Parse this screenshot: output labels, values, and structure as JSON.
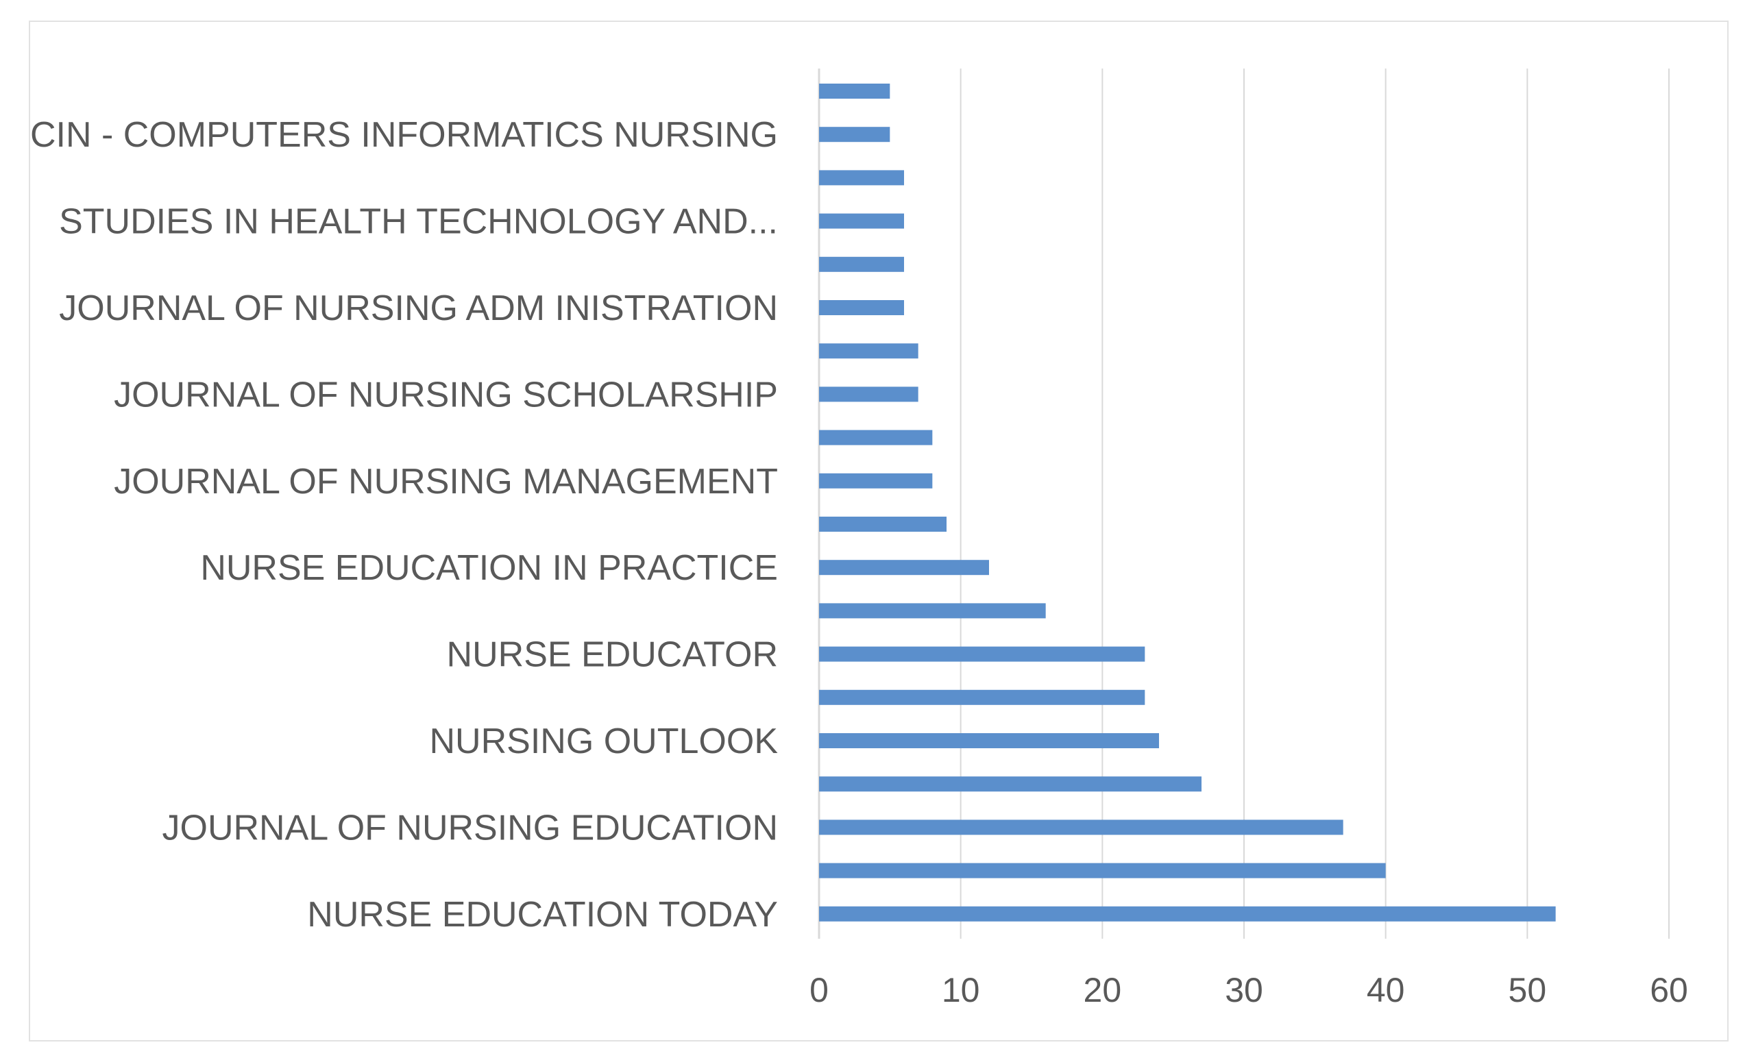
{
  "chart_data": {
    "type": "bar",
    "orientation": "horizontal",
    "categories": [
      "NURSE EDUCATION TODAY",
      "",
      "JOURNAL OF NURSING EDUCATION",
      "",
      "NURSING OUTLOOK",
      "",
      "NURSE EDUCATOR",
      "",
      "NURSE EDUCATION IN PRACTICE",
      "",
      "JOURNAL OF NURSING MANAGEMENT",
      "",
      "JOURNAL OF NURSING SCHOLARSHIP",
      "",
      "JOURNAL OF NURSING ADM INISTRATION",
      "",
      "STUDIES IN HEALTH TECHNOLOGY AND...",
      "",
      "CIN - COMPUTERS INFORMATICS NURSING",
      ""
    ],
    "values": [
      52,
      40,
      37,
      27,
      24,
      23,
      23,
      16,
      12,
      9,
      8,
      8,
      7,
      7,
      6,
      6,
      6,
      6,
      5,
      5
    ],
    "xlim": [
      0,
      60
    ],
    "xticks": [
      "0",
      "10",
      "20",
      "30",
      "40",
      "50",
      "60"
    ],
    "bar_color": "#5b8fcc",
    "grid": true,
    "grid_color": "#d9d9d9",
    "legend": "none",
    "title": "",
    "xlabel": "",
    "ylabel": ""
  }
}
